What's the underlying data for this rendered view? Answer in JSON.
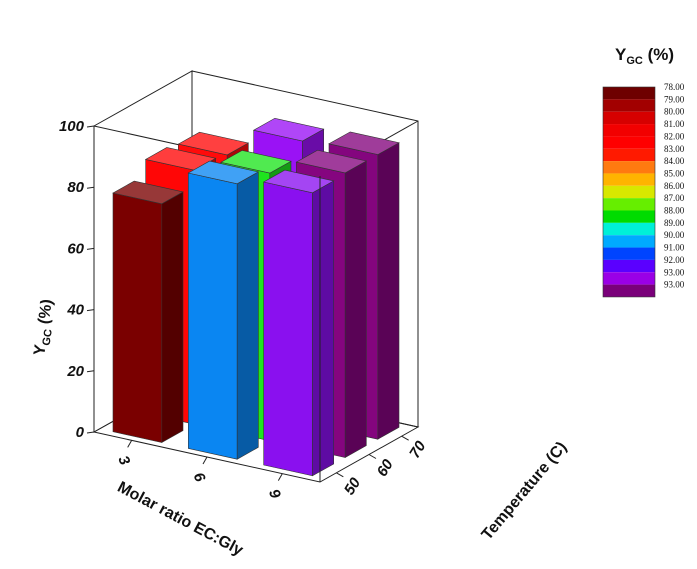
{
  "chart_data": {
    "type": "bar3d",
    "title": "",
    "x_axis": {
      "label": "Molar ratio EC:Gly",
      "ticks": [
        "3",
        "6",
        "9"
      ]
    },
    "y_axis": {
      "label": "Temperature (C)",
      "ticks": [
        "50",
        "60",
        "70"
      ]
    },
    "z_axis": {
      "label_main": "Y",
      "label_sub": "GC",
      "label_unit": " (%)",
      "ticks": [
        "0",
        "20",
        "40",
        "60",
        "80",
        "100"
      ],
      "range": [
        0,
        100
      ]
    },
    "bars": [
      {
        "molar_ratio": "3",
        "temperature": "50",
        "value": 78,
        "color": "#7a0000"
      },
      {
        "molar_ratio": "6",
        "temperature": "50",
        "value": 90,
        "color": "#0a86f2"
      },
      {
        "molar_ratio": "9",
        "temperature": "50",
        "value": 92.5,
        "color": "#8a10ef"
      },
      {
        "molar_ratio": "3",
        "temperature": "60",
        "value": 83,
        "color": "#ff0606"
      },
      {
        "molar_ratio": "6",
        "temperature": "60",
        "value": 87.5,
        "color": "#1ee41e"
      },
      {
        "molar_ratio": "9",
        "temperature": "60",
        "value": 93,
        "color": "#85057f"
      },
      {
        "molar_ratio": "3",
        "temperature": "70",
        "value": 82,
        "color": "#ff0a0a"
      },
      {
        "molar_ratio": "6",
        "temperature": "70",
        "value": 92,
        "color": "#9a12f5"
      },
      {
        "molar_ratio": "9",
        "temperature": "70",
        "value": 93,
        "color": "#84057e"
      }
    ],
    "legend": {
      "title_main": "Y",
      "title_sub": "GC",
      "title_unit": " (%)",
      "placement": "top-right",
      "levels": [
        {
          "label": "78.00",
          "color": "#6e0000"
        },
        {
          "label": "79.00",
          "color": "#a20000"
        },
        {
          "label": "80.00",
          "color": "#d60000"
        },
        {
          "label": "81.00",
          "color": "#f20000"
        },
        {
          "label": "82.00",
          "color": "#ff0000"
        },
        {
          "label": "83.00",
          "color": "#ff1a00"
        },
        {
          "label": "84.00",
          "color": "#ff7a10"
        },
        {
          "label": "85.00",
          "color": "#ffb400"
        },
        {
          "label": "86.00",
          "color": "#d8e800"
        },
        {
          "label": "87.00",
          "color": "#66ee00"
        },
        {
          "label": "88.00",
          "color": "#00dc00"
        },
        {
          "label": "89.00",
          "color": "#00f0d8"
        },
        {
          "label": "90.00",
          "color": "#00aaff"
        },
        {
          "label": "91.00",
          "color": "#0044ff"
        },
        {
          "label": "92.00",
          "color": "#5a00ff"
        },
        {
          "label": "93.00",
          "color": "#9a00e6"
        },
        {
          "label": "93.00",
          "color": "#7a007a"
        }
      ]
    }
  }
}
